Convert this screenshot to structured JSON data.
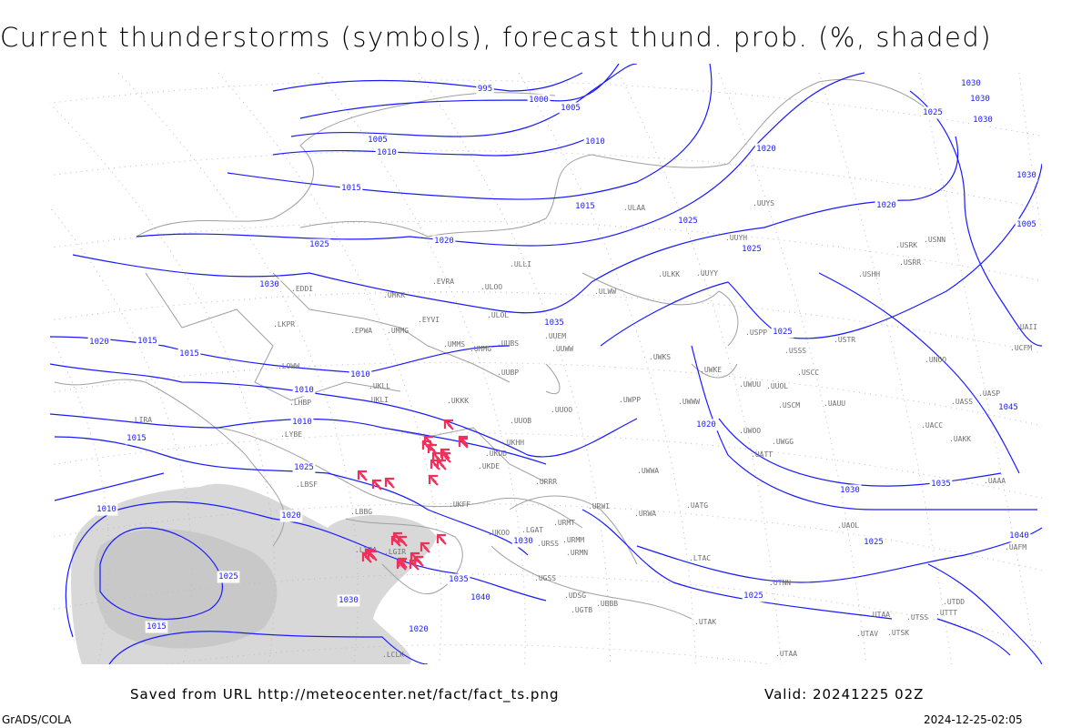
{
  "title": "Current thunderstorms (symbols), forecast thund. prob. (%, shaded)",
  "footer": {
    "saved_from": "Saved from URL http://meteocenter.net/fact/fact_ts.png",
    "valid": "Valid: 20241225 02Z",
    "software": "GrADS/COLA",
    "generated": "2024-12-25-02:05"
  },
  "colors": {
    "isobar": "#1a1aff",
    "coastline": "#a0a0a0",
    "thunderstorm_symbol": "#f0305a",
    "probability_shading": "#d8d8d8",
    "station_label": "#707070"
  },
  "isobar_labels": [
    "995",
    "1000",
    "1005",
    "1010",
    "1005",
    "1010",
    "1015",
    "1020",
    "1025",
    "1025",
    "1020",
    "1015",
    "1020",
    "1025",
    "1030",
    "1030",
    "1025",
    "1030",
    "1035",
    "1030",
    "1025",
    "1020",
    "1015",
    "1015",
    "1010",
    "1010",
    "1005",
    "1010",
    "1020",
    "1015",
    "1025",
    "1020",
    "1025",
    "1030",
    "1030",
    "1035",
    "1040",
    "1035",
    "1030",
    "1025",
    "1040",
    "1045",
    "1030",
    "1025",
    "1020",
    "1015",
    "1010"
  ],
  "station_labels": [
    "ULLI",
    "ULOO",
    "ULOL",
    "UUEM",
    "UUWW",
    "ULAA",
    "ULWW",
    "UMMS",
    "UMMG",
    "UUBS",
    "UUBP",
    "UKKK",
    "UUOB",
    "UUOO",
    "UKHH",
    "UKDD",
    "UKDE",
    "UKFF",
    "URRR",
    "URWI",
    "URWA",
    "URMT",
    "URMM",
    "URMN",
    "URSS",
    "UGSS",
    "UGTB",
    "UBBB",
    "UTAK",
    "UTAA",
    "UDSG",
    "UUYY",
    "UUYS",
    "UUYH",
    "ULKK",
    "UWPP",
    "UWKS",
    "UWWW",
    "UWKE",
    "UWUU",
    "USSS",
    "USCC",
    "USCM",
    "UAUU",
    "UATT",
    "UATG",
    "UACC",
    "UAKK",
    "UASP",
    "UAAA",
    "UAOL",
    "UAFM",
    "UTNN",
    "USNN",
    "USRR",
    "USRK",
    "USHH",
    "USTR",
    "UNOO",
    "UMKK",
    "UMMG",
    "EVRA",
    "EYVI",
    "EPWA",
    "EDDI",
    "LKPR",
    "LOWW",
    "LHBP",
    "UKLL",
    "UKLI",
    "LIRA",
    "LYBE",
    "LBSF",
    "LBBG",
    "LGAT",
    "LGIR",
    "LTBA",
    "LCLK",
    "LTAC",
    "UKOO",
    "UWOO",
    "UWGG",
    "UWWA",
    "UUOL",
    "USPP",
    "UCFM",
    "UAII",
    "UASS",
    "UTDD",
    "UTSS",
    "UTAV",
    "UTTT",
    "UTAA",
    "UTSK"
  ],
  "thunderstorm_count": 28
}
